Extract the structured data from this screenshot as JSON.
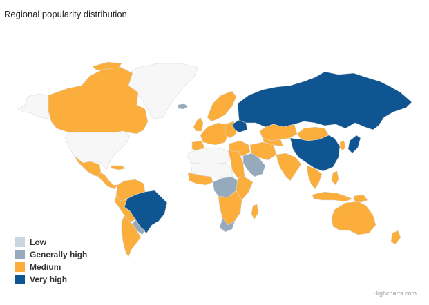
{
  "title": "Regional popularity distribution",
  "credits": "Highcharts.com",
  "colors": {
    "no_data": "#f7f7f7",
    "low": "#c9d6e2",
    "generally_high": "#96aabd",
    "medium": "#fbae3c",
    "very_high": "#0e5591",
    "border": "#d9d9d9"
  },
  "legend": [
    {
      "key": "low",
      "label": "Low",
      "color": "#c9d6e2"
    },
    {
      "key": "generally_high",
      "label": "Generally high",
      "color": "#96aabd"
    },
    {
      "key": "medium",
      "label": "Medium",
      "color": "#fbae3c"
    },
    {
      "key": "very_high",
      "label": "Very high",
      "color": "#0e5591"
    }
  ],
  "regions": {
    "greenland": "no_data",
    "canada": "medium",
    "alaska": "no_data",
    "usa": "no_data",
    "mexico": "medium",
    "central_america": "medium",
    "caribbean": "medium",
    "colombia_venezuela": "medium",
    "brazil": "very_high",
    "peru_bolivia": "medium",
    "paraguay_uruguay": "generally_high",
    "argentina_chile": "medium",
    "iceland": "generally_high",
    "uk_ireland": "medium",
    "scandinavia": "medium",
    "western_europe": "medium",
    "iberia": "medium",
    "eastern_europe": "medium",
    "ukraine": "very_high",
    "russia": "very_high",
    "kazakhstan": "medium",
    "mongolia": "medium",
    "china": "very_high",
    "japan": "very_high",
    "korea": "medium",
    "middle_east": "medium",
    "arabia": "generally_high",
    "iran": "medium",
    "central_asia": "medium",
    "india": "medium",
    "southeast_asia": "medium",
    "indonesia": "medium",
    "philippines": "medium",
    "png": "medium",
    "australia": "medium",
    "new_zealand": "medium",
    "north_africa": "no_data",
    "egypt": "medium",
    "sahel": "no_data",
    "west_africa": "medium",
    "central_africa": "generally_high",
    "east_africa": "medium",
    "southern_africa": "medium",
    "south_africa": "generally_high",
    "madagascar": "medium"
  }
}
